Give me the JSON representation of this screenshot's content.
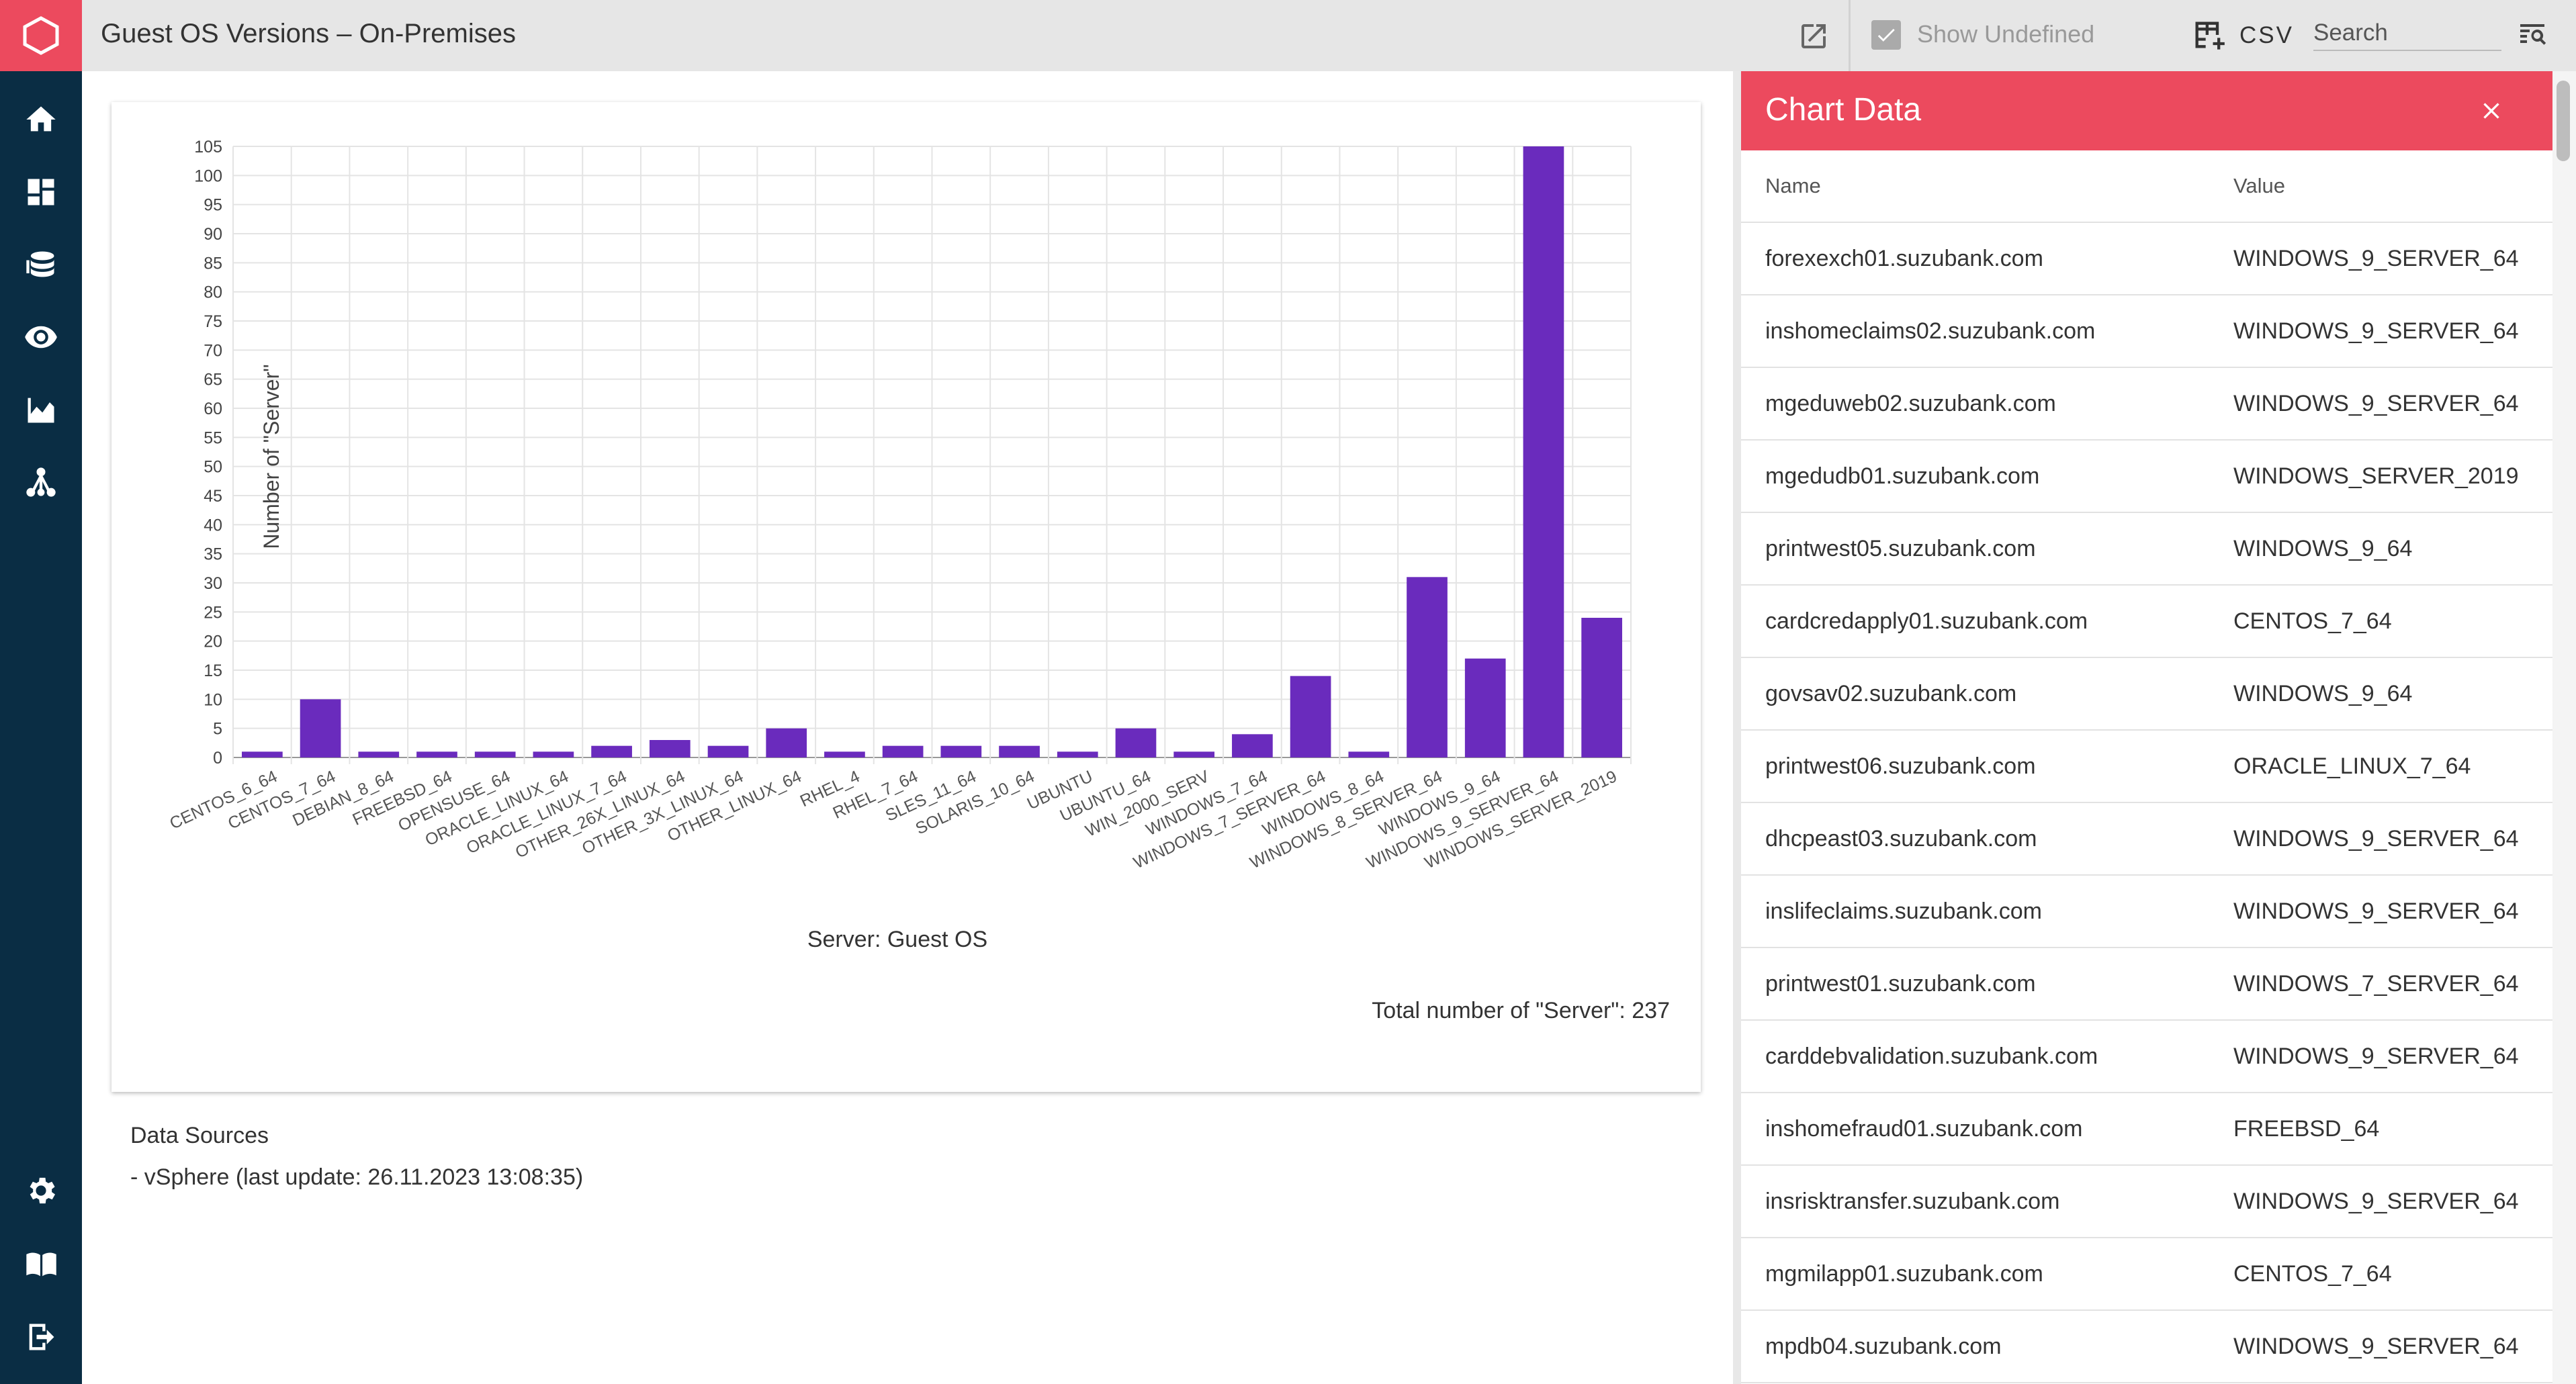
{
  "app": {
    "title": "Guest OS Versions – On-Premises"
  },
  "sidebar": {
    "items": [
      {
        "icon": "home-icon"
      },
      {
        "icon": "dashboard-icon"
      },
      {
        "icon": "database-icon"
      },
      {
        "icon": "eye-icon"
      },
      {
        "icon": "area-chart-icon"
      },
      {
        "icon": "network-icon"
      },
      {
        "icon": "gear-icon"
      },
      {
        "icon": "book-icon"
      },
      {
        "icon": "logout-icon"
      }
    ]
  },
  "toolbar": {
    "show_undefined_label": "Show Undefined",
    "csv_label": "CSV",
    "search_placeholder": "Search"
  },
  "chart_data": {
    "type": "bar",
    "categories": [
      "CENTOS_6_64",
      "CENTOS_7_64",
      "DEBIAN_8_64",
      "FREEBSD_64",
      "OPENSUSE_64",
      "ORACLE_LINUX_64",
      "ORACLE_LINUX_7_64",
      "OTHER_26X_LINUX_64",
      "OTHER_3X_LINUX_64",
      "OTHER_LINUX_64",
      "RHEL_4",
      "RHEL_7_64",
      "SLES_11_64",
      "SOLARIS_10_64",
      "UBUNTU",
      "UBUNTU_64",
      "WIN_2000_SERV",
      "WINDOWS_7_64",
      "WINDOWS_7_SERVER_64",
      "WINDOWS_8_64",
      "WINDOWS_8_SERVER_64",
      "WINDOWS_9_64",
      "WINDOWS_9_SERVER_64",
      "WINDOWS_SERVER_2019"
    ],
    "values": [
      1,
      10,
      1,
      1,
      1,
      1,
      2,
      3,
      2,
      5,
      1,
      2,
      2,
      2,
      1,
      5,
      1,
      4,
      14,
      1,
      31,
      17,
      105,
      24
    ],
    "xlabel": "Server: Guest OS",
    "ylabel": "Number of \"Server\"",
    "ylim": [
      0,
      105
    ],
    "yticks": [
      0,
      5,
      10,
      15,
      20,
      25,
      30,
      35,
      40,
      45,
      50,
      55,
      60,
      65,
      70,
      75,
      80,
      85,
      90,
      95,
      100,
      105
    ],
    "grid": true,
    "bar_color": "#6a2bbd",
    "total_label": "Total number of \"Server\": 237"
  },
  "data_sources": {
    "heading": "Data Sources",
    "line": "- vSphere (last update: 26.11.2023 13:08:35)"
  },
  "panel": {
    "title": "Chart Data",
    "col_name": "Name",
    "col_value": "Value",
    "rows": [
      {
        "name": "forexexch01.suzubank.com",
        "value": "WINDOWS_9_SERVER_64"
      },
      {
        "name": "inshomeclaims02.suzubank.com",
        "value": "WINDOWS_9_SERVER_64"
      },
      {
        "name": "mgeduweb02.suzubank.com",
        "value": "WINDOWS_9_SERVER_64"
      },
      {
        "name": "mgedudb01.suzubank.com",
        "value": "WINDOWS_SERVER_2019"
      },
      {
        "name": "printwest05.suzubank.com",
        "value": "WINDOWS_9_64"
      },
      {
        "name": "cardcredapply01.suzubank.com",
        "value": "CENTOS_7_64"
      },
      {
        "name": "govsav02.suzubank.com",
        "value": "WINDOWS_9_64"
      },
      {
        "name": "printwest06.suzubank.com",
        "value": "ORACLE_LINUX_7_64"
      },
      {
        "name": "dhcpeast03.suzubank.com",
        "value": "WINDOWS_9_SERVER_64"
      },
      {
        "name": "inslifeclaims.suzubank.com",
        "value": "WINDOWS_9_SERVER_64"
      },
      {
        "name": "printwest01.suzubank.com",
        "value": "WINDOWS_7_SERVER_64"
      },
      {
        "name": "carddebvalidation.suzubank.com",
        "value": "WINDOWS_9_SERVER_64"
      },
      {
        "name": "inshomefraud01.suzubank.com",
        "value": "FREEBSD_64"
      },
      {
        "name": "insrisktransfer.suzubank.com",
        "value": "WINDOWS_9_SERVER_64"
      },
      {
        "name": "mgmilapp01.suzubank.com",
        "value": "CENTOS_7_64"
      },
      {
        "name": "mpdb04.suzubank.com",
        "value": "WINDOWS_9_SERVER_64"
      }
    ]
  },
  "colors": {
    "accent": "#ec4a5e",
    "rail": "#0a2d44",
    "header": "#e6e6e6"
  }
}
